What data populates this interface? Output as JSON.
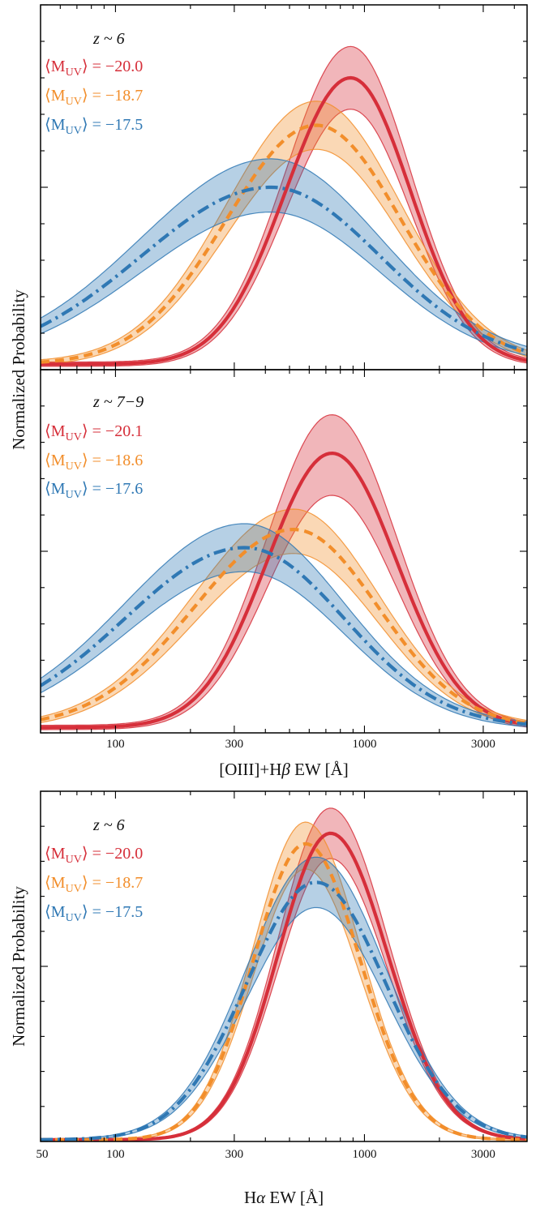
{
  "chart_data": [
    {
      "type": "line",
      "panel": "top",
      "ylabel": "Normalized Probability",
      "xlabel": "",
      "xscale": "log",
      "xlim": [
        50,
        4500
      ],
      "ylim": [
        0,
        1
      ],
      "x_ticks": [],
      "redshift_label": "z ~ 6",
      "series": [
        {
          "name": "⟨M_UV⟩ = −20.0",
          "label_prefix": "⟨M",
          "label_sub": "UV",
          "label_suffix": "⟩ = −20.0",
          "color": "#d62f3a",
          "style": "solid",
          "peak_ew": 880,
          "peak_value": 0.8,
          "band_upper_peak": 0.88,
          "band_lower_peak": 0.72,
          "sigma_left_dex": 0.26,
          "sigma_right_dex": 0.24,
          "floor": 0.015
        },
        {
          "name": "⟨M_UV⟩ = −18.7",
          "label_prefix": "⟨M",
          "label_sub": "UV",
          "label_suffix": "⟩ = −18.7",
          "color": "#f28e2b",
          "style": "dashed",
          "peak_ew": 640,
          "peak_value": 0.67,
          "band_upper_peak": 0.73,
          "band_lower_peak": 0.61,
          "sigma_left_dex": 0.36,
          "sigma_right_dex": 0.34,
          "floor": 0.015
        },
        {
          "name": "⟨M_UV⟩ = −17.5",
          "label_prefix": "⟨M",
          "label_sub": "UV",
          "label_suffix": "⟩ = −17.5",
          "color": "#2f78b4",
          "style": "dashdot",
          "peak_ew": 420,
          "peak_value": 0.5,
          "band_upper_peak": 0.57,
          "band_lower_peak": 0.44,
          "sigma_left_dex": 0.52,
          "sigma_right_dex": 0.44,
          "floor": 0.02
        }
      ]
    },
    {
      "type": "line",
      "panel": "middle",
      "ylabel": "Normalized Probability",
      "xlabel": "[OIII]+Hβ EW [Å]",
      "xlabel_prefix": "[OIII]+H",
      "xlabel_greek": "β",
      "xlabel_suffix": " EW [Å]",
      "xscale": "log",
      "xlim": [
        50,
        4500
      ],
      "ylim": [
        0,
        1
      ],
      "x_ticks": [
        "100",
        "300",
        "1000",
        "3000"
      ],
      "redshift_label": "z ~ 7−9",
      "series": [
        {
          "name": "⟨M_UV⟩ = −20.1",
          "label_prefix": "⟨M",
          "label_sub": "UV",
          "label_suffix": "⟩ = −20.1",
          "color": "#d62f3a",
          "style": "solid",
          "peak_ew": 740,
          "peak_value": 0.77,
          "band_upper_peak": 0.87,
          "band_lower_peak": 0.66,
          "sigma_left_dex": 0.26,
          "sigma_right_dex": 0.26,
          "floor": 0.015
        },
        {
          "name": "⟨M_UV⟩ = −18.6",
          "label_prefix": "⟨M",
          "label_sub": "UV",
          "label_suffix": "⟩ = −18.6",
          "color": "#f28e2b",
          "style": "dashed",
          "peak_ew": 520,
          "peak_value": 0.56,
          "band_upper_peak": 0.61,
          "band_lower_peak": 0.5,
          "sigma_left_dex": 0.4,
          "sigma_right_dex": 0.34,
          "floor": 0.015
        },
        {
          "name": "⟨M_UV⟩ = −17.6",
          "label_prefix": "⟨M",
          "label_sub": "UV",
          "label_suffix": "⟩ = −17.6",
          "color": "#2f78b4",
          "style": "dashdot",
          "peak_ew": 330,
          "peak_value": 0.51,
          "band_upper_peak": 0.57,
          "band_lower_peak": 0.45,
          "sigma_left_dex": 0.48,
          "sigma_right_dex": 0.4,
          "floor": 0.015
        }
      ]
    },
    {
      "type": "line",
      "panel": "bottom",
      "ylabel": "Normalized Probability",
      "xlabel": "Hα EW [Å]",
      "xlabel_prefix": "H",
      "xlabel_greek": "α",
      "xlabel_suffix": " EW [Å]",
      "xscale": "log",
      "xlim": [
        50,
        4500
      ],
      "ylim": [
        0,
        1
      ],
      "x_ticks": [
        "50",
        "100",
        "300",
        "1000",
        "3000"
      ],
      "redshift_label": "z ~ 6",
      "series": [
        {
          "name": "⟨M_UV⟩ = −20.0",
          "label_prefix": "⟨M",
          "label_sub": "UV",
          "label_suffix": "⟩ = −20.0",
          "color": "#d62f3a",
          "style": "solid",
          "peak_ew": 730,
          "peak_value": 0.88,
          "band_upper_peak": 0.95,
          "band_lower_peak": 0.81,
          "sigma_left_dex": 0.21,
          "sigma_right_dex": 0.23,
          "floor": 0.005
        },
        {
          "name": "⟨M_UV⟩ = −18.7",
          "label_prefix": "⟨M",
          "label_sub": "UV",
          "label_suffix": "⟩ = −18.7",
          "color": "#f28e2b",
          "style": "dashed",
          "peak_ew": 580,
          "peak_value": 0.85,
          "band_upper_peak": 0.91,
          "band_lower_peak": 0.78,
          "sigma_left_dex": 0.21,
          "sigma_right_dex": 0.22,
          "floor": 0.005
        },
        {
          "name": "⟨M_UV⟩ = −17.5",
          "label_prefix": "⟨M",
          "label_sub": "UV",
          "label_suffix": "⟩ = −17.5",
          "color": "#2f78b4",
          "style": "dashdot",
          "peak_ew": 640,
          "peak_value": 0.74,
          "band_upper_peak": 0.81,
          "band_lower_peak": 0.67,
          "sigma_left_dex": 0.28,
          "sigma_right_dex": 0.28,
          "floor": 0.005
        }
      ]
    }
  ]
}
